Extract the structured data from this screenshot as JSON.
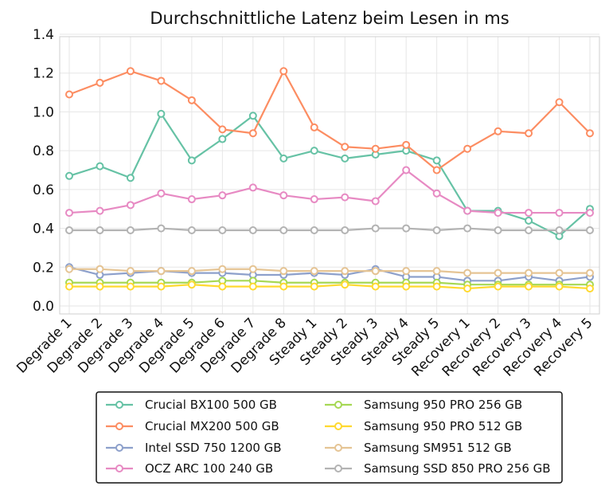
{
  "chart_data": {
    "type": "line",
    "title": "Durchschnittliche Latenz beim Lesen in ms",
    "xlabel": "",
    "ylabel": "",
    "ylim": [
      0.0,
      1.4
    ],
    "yticks": [
      "0.0",
      "0.2",
      "0.4",
      "0.6",
      "0.8",
      "1.0",
      "1.2",
      "1.4"
    ],
    "grid": true,
    "legend_position": "bottom",
    "categories": [
      "Degrade 1",
      "Degrade 2",
      "Degrade 3",
      "Degrade 4",
      "Degrade 5",
      "Degrade 6",
      "Degrade 7",
      "Degrade 8",
      "Steady 1",
      "Steady 2",
      "Steady 3",
      "Steady 4",
      "Steady 5",
      "Recovery 1",
      "Recovery 2",
      "Recovery 3",
      "Recovery 4",
      "Recovery 5"
    ],
    "series": [
      {
        "name": "Crucial BX100 500 GB",
        "color": "#66c2a5",
        "values": [
          0.67,
          0.72,
          0.66,
          0.99,
          0.75,
          0.86,
          0.98,
          0.76,
          0.8,
          0.76,
          0.78,
          0.8,
          0.75,
          0.49,
          0.49,
          0.44,
          0.36,
          0.5
        ]
      },
      {
        "name": "Crucial MX200 500 GB",
        "color": "#fc8d62",
        "values": [
          1.09,
          1.15,
          1.21,
          1.16,
          1.06,
          0.91,
          0.89,
          1.21,
          0.92,
          0.82,
          0.81,
          0.83,
          0.7,
          0.81,
          0.9,
          0.89,
          1.05,
          0.89
        ]
      },
      {
        "name": "Intel SSD 750 1200 GB",
        "color": "#8da0cb",
        "values": [
          0.2,
          0.16,
          0.17,
          0.18,
          0.17,
          0.17,
          0.16,
          0.16,
          0.17,
          0.16,
          0.19,
          0.15,
          0.15,
          0.13,
          0.13,
          0.15,
          0.13,
          0.15
        ]
      },
      {
        "name": "OCZ ARC 100 240 GB",
        "color": "#e78ac3",
        "values": [
          0.48,
          0.49,
          0.52,
          0.58,
          0.55,
          0.57,
          0.61,
          0.57,
          0.55,
          0.56,
          0.54,
          0.7,
          0.58,
          0.49,
          0.48,
          0.48,
          0.48,
          0.48
        ]
      },
      {
        "name": "Samsung 950 PRO 256 GB",
        "color": "#a6d854",
        "values": [
          0.12,
          0.12,
          0.12,
          0.12,
          0.12,
          0.13,
          0.13,
          0.12,
          0.12,
          0.12,
          0.12,
          0.12,
          0.12,
          0.11,
          0.11,
          0.11,
          0.11,
          0.11
        ]
      },
      {
        "name": "Samsung 950 PRO 512 GB",
        "color": "#ffd92f",
        "values": [
          0.1,
          0.1,
          0.1,
          0.1,
          0.11,
          0.1,
          0.1,
          0.1,
          0.1,
          0.11,
          0.1,
          0.1,
          0.1,
          0.09,
          0.1,
          0.1,
          0.1,
          0.09
        ]
      },
      {
        "name": "Samsung SM951 512 GB",
        "color": "#e5c494",
        "values": [
          0.19,
          0.19,
          0.18,
          0.18,
          0.18,
          0.19,
          0.19,
          0.18,
          0.18,
          0.18,
          0.18,
          0.18,
          0.18,
          0.17,
          0.17,
          0.17,
          0.17,
          0.17
        ]
      },
      {
        "name": "Samsung SSD 850 PRO 256 GB",
        "color": "#b3b3b3",
        "values": [
          0.39,
          0.39,
          0.39,
          0.4,
          0.39,
          0.39,
          0.39,
          0.39,
          0.39,
          0.39,
          0.4,
          0.4,
          0.39,
          0.4,
          0.39,
          0.39,
          0.39,
          0.39
        ]
      }
    ]
  }
}
